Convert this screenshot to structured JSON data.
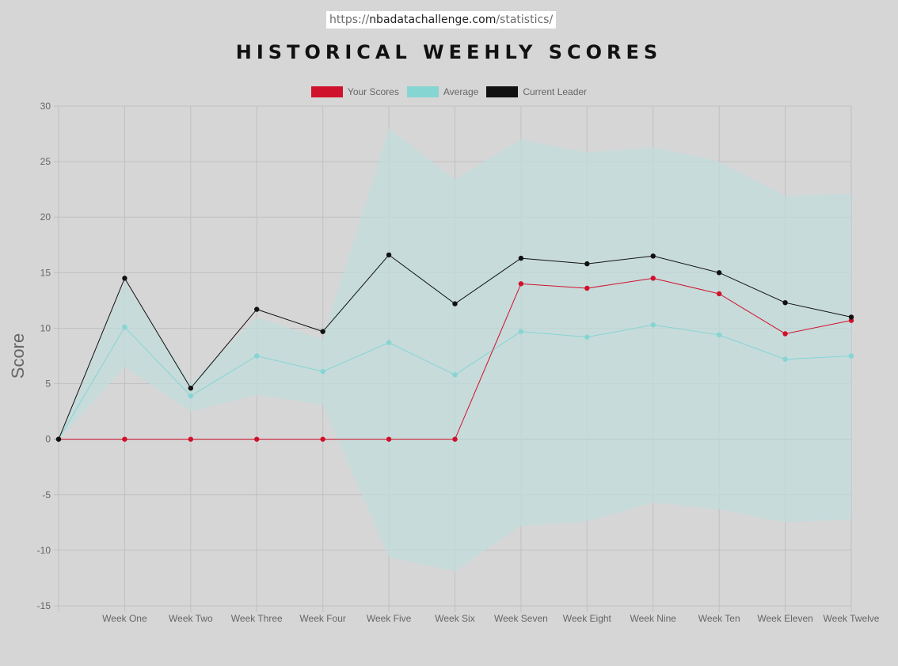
{
  "url": {
    "prefix": "https://",
    "domain": "nbadatachallenge.com",
    "path": "/statistics/"
  },
  "chart_data": {
    "type": "line",
    "title": "HISTORICAL WEEHLY SCORES",
    "xlabel": "",
    "ylabel": "Score",
    "ylim": [
      -15,
      30
    ],
    "yticks": [
      -15,
      -10,
      -5,
      0,
      5,
      10,
      15,
      20,
      25,
      30
    ],
    "grid": true,
    "legend_position": "top",
    "categories": [
      "",
      "Week One",
      "Week Two",
      "Week Three",
      "Week Four",
      "Week Five",
      "Week Six",
      "Week Seven",
      "Week Eight",
      "Week Nine",
      "Week Ten",
      "Week Eleven",
      "Week Twelve"
    ],
    "series": [
      {
        "name": "Your Scores",
        "color": "#d0112b",
        "values": [
          0,
          0,
          0,
          0,
          0,
          0,
          0,
          14.0,
          13.6,
          14.5,
          13.1,
          9.5,
          10.7
        ]
      },
      {
        "name": "Average",
        "color": "#85d5d3",
        "values": [
          0,
          10.1,
          3.9,
          7.5,
          6.1,
          8.7,
          5.8,
          9.7,
          9.2,
          10.3,
          9.4,
          7.2,
          7.5
        ]
      },
      {
        "name": "Current Leader",
        "color": "#111111",
        "values": [
          0,
          14.5,
          4.6,
          11.7,
          9.7,
          16.6,
          12.2,
          16.3,
          15.8,
          16.5,
          15.0,
          12.3,
          11.0
        ]
      }
    ],
    "band": {
      "color": "#c2dcdc",
      "upper": [
        0,
        14.2,
        5.0,
        11.0,
        9.0,
        28.0,
        23.4,
        27.0,
        25.8,
        26.3,
        25.0,
        21.9,
        22.1
      ],
      "lower": [
        0,
        6.5,
        2.5,
        4.0,
        3.1,
        -10.6,
        -11.9,
        -7.8,
        -7.4,
        -5.7,
        -6.3,
        -7.5,
        -7.2
      ]
    }
  }
}
